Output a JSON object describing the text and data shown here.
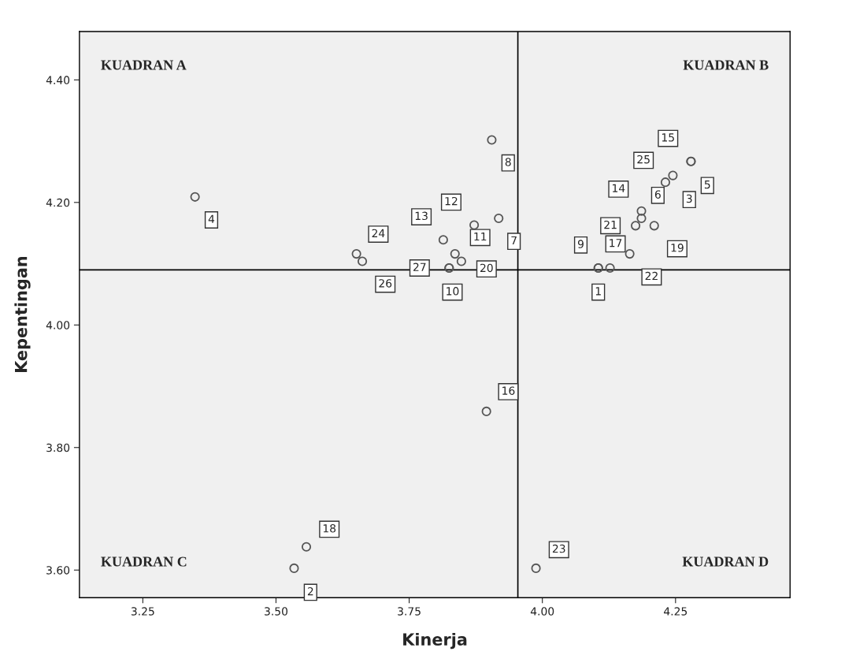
{
  "chart_data": {
    "type": "scatter",
    "xlabel": "Kinerja",
    "ylabel": "Kepentingan",
    "series": [
      {
        "color": "#555555",
        "x": [
          4.105,
          3.534,
          4.245,
          3.348,
          4.279,
          4.186,
          3.918,
          3.905,
          4.105,
          3.825,
          3.836,
          3.872,
          3.814,
          4.186,
          4.279,
          3.895,
          4.127,
          3.557,
          4.21,
          3.848,
          4.175,
          4.164,
          3.988,
          3.651,
          4.231,
          3.662,
          3.825
        ],
        "values": [
          4.093,
          3.603,
          4.244,
          4.209,
          4.267,
          4.174,
          4.174,
          4.302,
          4.093,
          4.093,
          4.116,
          4.163,
          4.139,
          4.186,
          4.267,
          3.859,
          4.093,
          3.638,
          4.162,
          4.104,
          4.162,
          4.116,
          3.603,
          4.116,
          4.233,
          4.104,
          4.093
        ]
      }
    ],
    "marker": "circle",
    "xlim": [
      3.131,
      4.465
    ],
    "ylim": [
      3.555,
      4.479
    ],
    "xticks": [
      {
        "value": 3.25,
        "label": "3.25"
      },
      {
        "value": 3.5,
        "label": "3.50"
      },
      {
        "value": 3.75,
        "label": "3.75"
      },
      {
        "value": 4.0,
        "label": "4.00"
      },
      {
        "value": 4.25,
        "label": "4.25"
      }
    ],
    "yticks": [
      {
        "value": 3.6,
        "label": "3.60"
      },
      {
        "value": 3.8,
        "label": "3.80"
      },
      {
        "value": 4.0,
        "label": "4.00"
      },
      {
        "value": 4.2,
        "label": "4.20"
      },
      {
        "value": 4.4,
        "label": "4.40"
      }
    ],
    "ref_lines": [
      {
        "axis": "x",
        "value": 3.954,
        "color": "#000000"
      },
      {
        "axis": "y",
        "value": 4.09,
        "color": "#000000"
      }
    ],
    "grid": false,
    "legend": false,
    "annotations": [
      "KUADRAN A",
      "KUADRAN B",
      "KUADRAN C",
      "KUADRAN D",
      {
        "text": "1",
        "x": 4.105,
        "y": 4.093
      },
      {
        "text": "2",
        "x": 3.534,
        "y": 3.603
      },
      {
        "text": "3",
        "x": 4.245,
        "y": 4.244
      },
      {
        "text": "4",
        "x": 3.348,
        "y": 4.209
      },
      {
        "text": "5",
        "x": 4.279,
        "y": 4.267
      },
      {
        "text": "6",
        "x": 4.186,
        "y": 4.174
      },
      {
        "text": "7",
        "x": 3.918,
        "y": 4.174
      },
      {
        "text": "8",
        "x": 3.905,
        "y": 4.302
      },
      {
        "text": "9",
        "x": 4.105,
        "y": 4.093
      },
      {
        "text": "10",
        "x": 3.825,
        "y": 4.093
      },
      {
        "text": "11",
        "x": 3.836,
        "y": 4.116
      },
      {
        "text": "12",
        "x": 3.872,
        "y": 4.163
      },
      {
        "text": "13",
        "x": 3.814,
        "y": 4.139
      },
      {
        "text": "14",
        "x": 4.186,
        "y": 4.186
      },
      {
        "text": "15",
        "x": 4.279,
        "y": 4.267
      },
      {
        "text": "16",
        "x": 3.895,
        "y": 3.859
      },
      {
        "text": "17",
        "x": 4.127,
        "y": 4.093
      },
      {
        "text": "18",
        "x": 3.557,
        "y": 3.638
      },
      {
        "text": "19",
        "x": 4.21,
        "y": 4.162
      },
      {
        "text": "20",
        "x": 3.848,
        "y": 4.104
      },
      {
        "text": "21",
        "x": 4.175,
        "y": 4.162
      },
      {
        "text": "22",
        "x": 4.164,
        "y": 4.116
      },
      {
        "text": "23",
        "x": 3.988,
        "y": 3.603
      },
      {
        "text": "24",
        "x": 3.651,
        "y": 4.116
      },
      {
        "text": "25",
        "x": 4.231,
        "y": 4.233
      },
      {
        "text": "26",
        "x": 3.662,
        "y": 4.104
      },
      {
        "text": "27",
        "x": 3.825,
        "y": 4.093
      }
    ]
  }
}
